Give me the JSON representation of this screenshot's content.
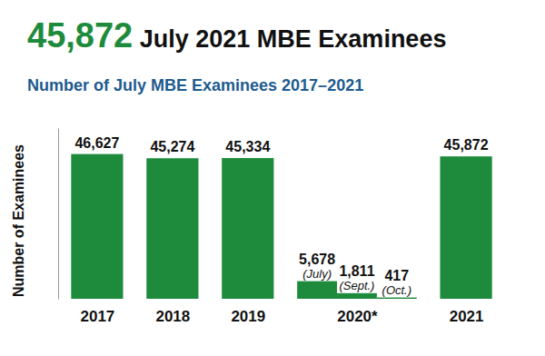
{
  "chart_data": {
    "type": "bar",
    "title": "45,872 July 2021 MBE Examinees",
    "subtitle": "Number of July MBE Examinees 2017–2021",
    "y_label": "Number of Examinees",
    "categories": [
      "2017",
      "2018",
      "2019",
      null,
      "2020*",
      null,
      "2021"
    ],
    "values": [
      46627,
      45274,
      45334,
      5678,
      1811,
      417,
      45872
    ],
    "value_labels": [
      "46,627",
      "45,274",
      "45,334",
      "5,678",
      "1,811",
      "417",
      "45,872"
    ],
    "annotations": [
      null,
      null,
      null,
      "(July)",
      "(Sept.)",
      "(Oct.)",
      null
    ],
    "color": "#1e8b3c",
    "ylim": [
      0,
      55000
    ],
    "data_labels": true,
    "tick_labels": "x"
  }
}
